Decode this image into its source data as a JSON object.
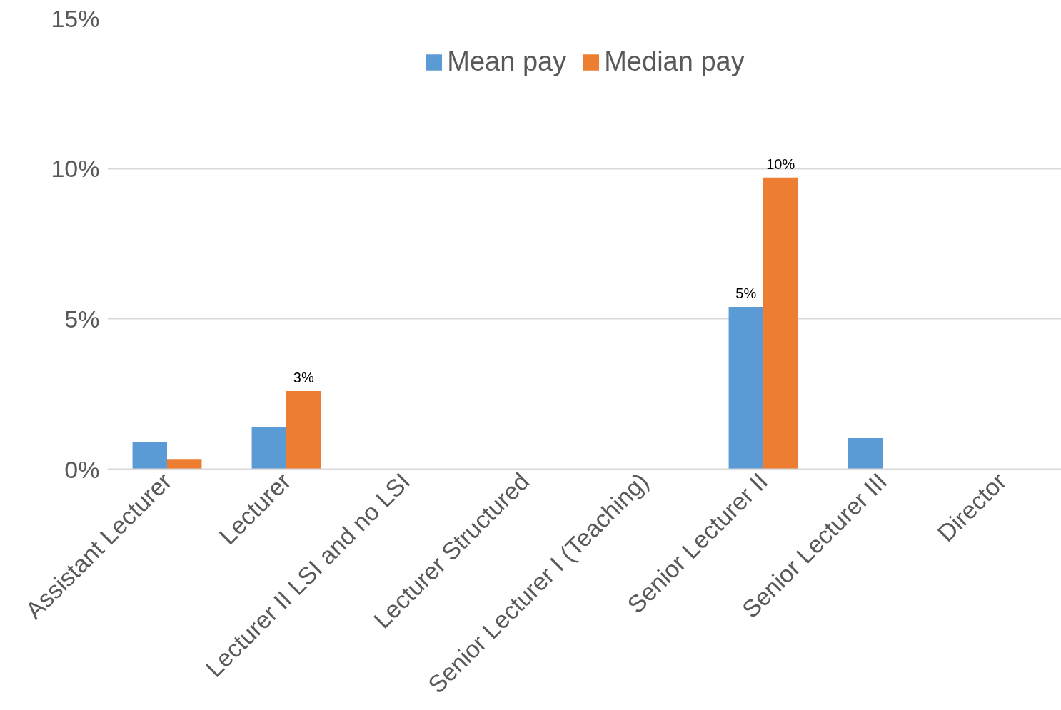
{
  "chart_data": {
    "type": "bar",
    "categories": [
      "Assistant Lecturer",
      "Lecturer",
      "Lecturer II LSI and no LSI",
      "Lecturer Structured",
      "Senior Lecturer I (Teaching)",
      "Senior Lecturer II",
      "Senior Lecturer III",
      "Director"
    ],
    "series": [
      {
        "name": "Mean pay",
        "color": "#5b9bd5",
        "values": [
          0.9,
          1.4,
          0,
          0,
          0,
          5.4,
          1.03,
          0
        ],
        "value_labels": [
          null,
          null,
          null,
          null,
          null,
          "5%",
          null,
          null
        ]
      },
      {
        "name": "Median pay",
        "color": "#ed7d31",
        "values": [
          0.34,
          2.6,
          0,
          0,
          0,
          9.7,
          0,
          0
        ],
        "value_labels": [
          null,
          "3%",
          null,
          null,
          null,
          "10%",
          null,
          null
        ]
      }
    ],
    "ylim": [
      0,
      15
    ],
    "yticks": [
      {
        "value": 0,
        "label": "0%"
      },
      {
        "value": 5,
        "label": "5%"
      },
      {
        "value": 10,
        "label": "10%"
      },
      {
        "value": 15,
        "label": "15%"
      }
    ],
    "grid": "y",
    "legend": "top"
  }
}
